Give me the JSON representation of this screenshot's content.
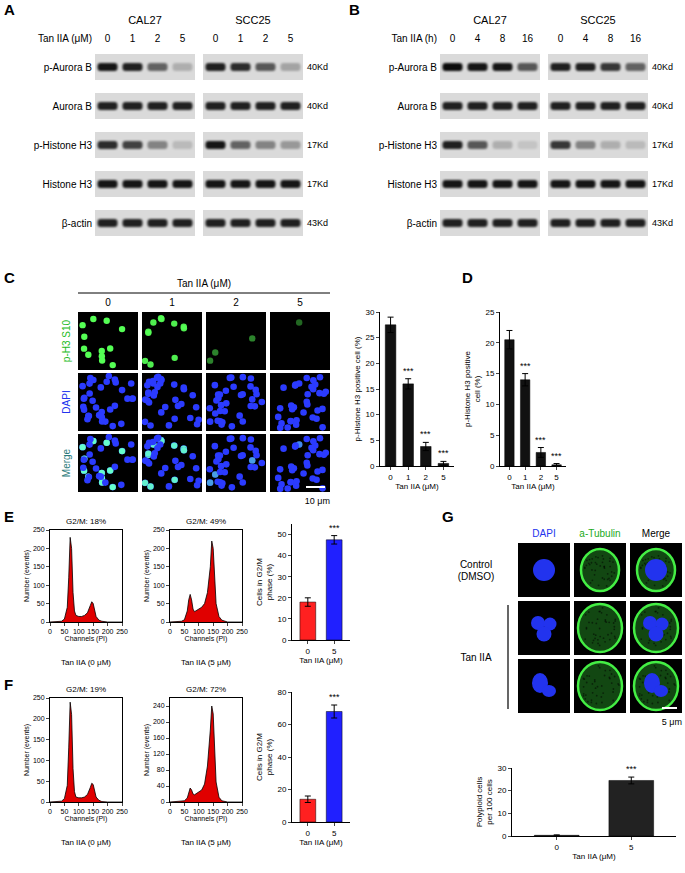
{
  "panel_labels": [
    "A",
    "B",
    "C",
    "D",
    "E",
    "F",
    "G"
  ],
  "blots": [
    {
      "treatment": "Tan IIA (μM)",
      "groups": [
        "CAL27",
        "SCC25"
      ],
      "lanes": [
        "0",
        "1",
        "2",
        "5"
      ],
      "rows": [
        {
          "name": "p-Aurora B",
          "size": "40Kd",
          "intensity": [
            [
              0.9,
              0.85,
              0.55,
              0.2
            ],
            [
              0.85,
              0.8,
              0.6,
              0.25
            ]
          ]
        },
        {
          "name": "Aurora B",
          "size": "40Kd",
          "intensity": [
            [
              0.85,
              0.85,
              0.85,
              0.85
            ],
            [
              0.85,
              0.85,
              0.85,
              0.85
            ]
          ]
        },
        {
          "name": "p-Histone H3",
          "size": "17Kd",
          "intensity": [
            [
              0.8,
              0.7,
              0.4,
              0.15
            ],
            [
              0.9,
              0.55,
              0.4,
              0.3
            ]
          ]
        },
        {
          "name": "Histone H3",
          "size": "17Kd",
          "intensity": [
            [
              0.9,
              0.9,
              0.9,
              0.9
            ],
            [
              0.9,
              0.9,
              0.9,
              0.9
            ]
          ]
        },
        {
          "name": "β-actin",
          "size": "43Kd",
          "intensity": [
            [
              0.85,
              0.85,
              0.85,
              0.85
            ],
            [
              0.85,
              0.85,
              0.85,
              0.85
            ]
          ]
        }
      ]
    },
    {
      "treatment": "Tan IIA (h)",
      "groups": [
        "CAL27",
        "SCC25"
      ],
      "lanes": [
        "0",
        "4",
        "8",
        "16"
      ],
      "rows": [
        {
          "name": "p-Aurora B",
          "size": "40Kd",
          "intensity": [
            [
              0.95,
              0.9,
              0.9,
              0.6
            ],
            [
              0.85,
              0.85,
              0.75,
              0.55
            ]
          ]
        },
        {
          "name": "Aurora B",
          "size": "40Kd",
          "intensity": [
            [
              0.85,
              0.85,
              0.85,
              0.85
            ],
            [
              0.85,
              0.85,
              0.85,
              0.85
            ]
          ]
        },
        {
          "name": "p-Histone H3",
          "size": "17Kd",
          "intensity": [
            [
              0.85,
              0.6,
              0.2,
              0.1
            ],
            [
              0.75,
              0.4,
              0.2,
              0.15
            ]
          ]
        },
        {
          "name": "Histone H3",
          "size": "17Kd",
          "intensity": [
            [
              0.9,
              0.9,
              0.9,
              0.9
            ],
            [
              0.9,
              0.9,
              0.9,
              0.9
            ]
          ]
        },
        {
          "name": "β-actin",
          "size": "43Kd",
          "intensity": [
            [
              0.85,
              0.85,
              0.85,
              0.85
            ],
            [
              0.85,
              0.85,
              0.85,
              0.85
            ]
          ]
        }
      ]
    }
  ],
  "microscopy_c": {
    "title": "Tan IIA (μM)",
    "columns": [
      "0",
      "1",
      "2",
      "5"
    ],
    "rows": [
      "p-H3 S10",
      "DAPI",
      "Merge"
    ],
    "scale_bar": "10 μm",
    "signal": [
      1,
      0.9,
      0.25,
      0.08
    ]
  },
  "microscopy_g": {
    "columns": [
      "DAPI",
      "a-Tubulin",
      "Merge"
    ],
    "groups": [
      {
        "label": [
          "Control",
          "(DMSO)"
        ],
        "cells": 1
      },
      {
        "label": [
          "Tan IIA"
        ],
        "cells": 2
      }
    ],
    "scale_bar": "5 μm"
  },
  "chart_data": [
    {
      "type": "bar",
      "ylabel": [
        "p-Histone H3 positive cell (%)"
      ],
      "xlabel": "Tan IIA (μM)",
      "categories": [
        "0",
        "1",
        "2",
        "5"
      ],
      "values": [
        27.5,
        16,
        3.8,
        0.5
      ],
      "errors": [
        1.5,
        1,
        0.8,
        0.4
      ],
      "significance": [
        null,
        "***",
        "***",
        "***"
      ],
      "color": "#111111",
      "ylim": [
        0,
        30
      ],
      "yticks": [
        0,
        5,
        10,
        15,
        20,
        25,
        30
      ]
    },
    {
      "type": "bar",
      "ylabel": [
        "p-Histone H3 positive",
        "cell (%)"
      ],
      "xlabel": "Tan IIA (μM)",
      "categories": [
        "0",
        "1",
        "2",
        "5"
      ],
      "values": [
        20.5,
        14,
        2.2,
        0.2
      ],
      "errors": [
        1.5,
        1,
        0.8,
        0.2
      ],
      "significance": [
        null,
        "***",
        "***",
        "***"
      ],
      "color": "#111111",
      "ylim": [
        0,
        25
      ],
      "yticks": [
        0,
        5,
        10,
        15,
        20,
        25
      ]
    },
    {
      "type": "area",
      "title": "G2/M: 18%",
      "caption": "Tan IIA (0 μM)",
      "xlabel": "Channels (PI)",
      "ylabel": "Number (events)",
      "x": [
        0,
        40,
        50,
        60,
        65,
        70,
        75,
        80,
        85,
        90,
        100,
        110,
        120,
        130,
        140,
        145,
        150,
        155,
        160,
        170,
        180,
        200,
        250
      ],
      "values": [
        0,
        2,
        8,
        40,
        120,
        230,
        200,
        80,
        30,
        18,
        15,
        15,
        18,
        25,
        45,
        55,
        50,
        35,
        15,
        5,
        2,
        0,
        0
      ],
      "color": "#e00000",
      "xlim": [
        0,
        250
      ],
      "xticks": [
        0,
        50,
        100,
        150,
        200,
        250
      ],
      "ylim": [
        0,
        250
      ],
      "yticks": [
        0,
        50,
        100,
        150,
        200,
        250
      ]
    },
    {
      "type": "area",
      "title": "G2/M: 49%",
      "caption": "Tan IIA (5 μM)",
      "xlabel": "Channels (PI)",
      "ylabel": "Number (events)",
      "x": [
        0,
        40,
        50,
        60,
        65,
        70,
        75,
        80,
        85,
        90,
        100,
        110,
        120,
        130,
        140,
        145,
        150,
        155,
        160,
        170,
        180,
        200,
        250
      ],
      "values": [
        0,
        2,
        6,
        30,
        60,
        75,
        60,
        35,
        28,
        30,
        35,
        40,
        50,
        80,
        150,
        220,
        200,
        120,
        50,
        15,
        5,
        0,
        0
      ],
      "color": "#e00000",
      "xlim": [
        0,
        250
      ],
      "xticks": [
        0,
        50,
        100,
        150,
        200,
        250
      ],
      "ylim": [
        0,
        250
      ],
      "yticks": [
        0,
        50,
        100,
        150,
        200,
        250
      ]
    },
    {
      "type": "bar",
      "ylabel": [
        "Cells in G2/M",
        "phase (%)"
      ],
      "xlabel": "Tan IIA (μM)",
      "categories": [
        "0",
        "5"
      ],
      "values": [
        18,
        47.5
      ],
      "errors": [
        2,
        2
      ],
      "significance": [
        null,
        "***"
      ],
      "colors": [
        "#ff2020",
        "#2020ff"
      ],
      "ylim": [
        0,
        55
      ],
      "yticks": [
        0,
        10,
        20,
        30,
        40,
        50
      ]
    },
    {
      "type": "area",
      "title": "G2/M: 19%",
      "caption": "Tan IIA (0 μM)",
      "xlabel": "Channels (PI)",
      "ylabel": "Number (events)",
      "x": [
        0,
        40,
        50,
        60,
        65,
        70,
        75,
        80,
        85,
        90,
        100,
        110,
        120,
        130,
        140,
        145,
        150,
        155,
        160,
        170,
        180,
        200,
        250
      ],
      "values": [
        0,
        2,
        8,
        40,
        130,
        240,
        210,
        80,
        25,
        12,
        10,
        10,
        12,
        18,
        35,
        45,
        42,
        30,
        12,
        4,
        1,
        0,
        0
      ],
      "color": "#e00000",
      "xlim": [
        0,
        250
      ],
      "xticks": [
        0,
        50,
        100,
        150,
        200,
        250
      ],
      "ylim": [
        0,
        250
      ],
      "yticks": [
        0,
        50,
        100,
        150,
        200,
        250
      ]
    },
    {
      "type": "area",
      "title": "G2/M: 72%",
      "caption": "Tan IIA (5 μM)",
      "xlabel": "Channels (PI)",
      "ylabel": "Number (events)",
      "x": [
        0,
        40,
        50,
        60,
        65,
        70,
        75,
        80,
        85,
        90,
        100,
        110,
        120,
        130,
        140,
        145,
        150,
        155,
        160,
        170,
        180,
        200,
        250
      ],
      "values": [
        0,
        1,
        3,
        10,
        25,
        35,
        30,
        20,
        18,
        20,
        25,
        30,
        45,
        90,
        180,
        240,
        220,
        130,
        50,
        12,
        3,
        0,
        0
      ],
      "color": "#e00000",
      "xlim": [
        0,
        250
      ],
      "xticks": [
        0,
        50,
        100,
        150,
        200,
        250
      ],
      "ylim": [
        0,
        260
      ],
      "yticks": [
        0,
        40,
        80,
        120,
        160,
        200,
        240
      ]
    },
    {
      "type": "bar",
      "ylabel": [
        "Cells in G2/M",
        "phase (%)"
      ],
      "xlabel": "Tan IIA (μM)",
      "categories": [
        "0",
        "5"
      ],
      "values": [
        14,
        68
      ],
      "errors": [
        2,
        4
      ],
      "significance": [
        null,
        "***"
      ],
      "colors": [
        "#ff2020",
        "#2020ff"
      ],
      "ylim": [
        0,
        80
      ],
      "yticks": [
        0,
        20,
        40,
        60,
        80
      ]
    },
    {
      "type": "bar",
      "ylabel": [
        "Polyploid cells",
        "per 100 cells"
      ],
      "xlabel": "Tan IIA (μM)",
      "categories": [
        "0",
        "5"
      ],
      "values": [
        0.3,
        24.5
      ],
      "errors": [
        0.2,
        1.5
      ],
      "significance": [
        null,
        "***"
      ],
      "color": "#222222",
      "ylim": [
        0,
        30
      ],
      "yticks": [
        0,
        10,
        20,
        30
      ]
    }
  ]
}
